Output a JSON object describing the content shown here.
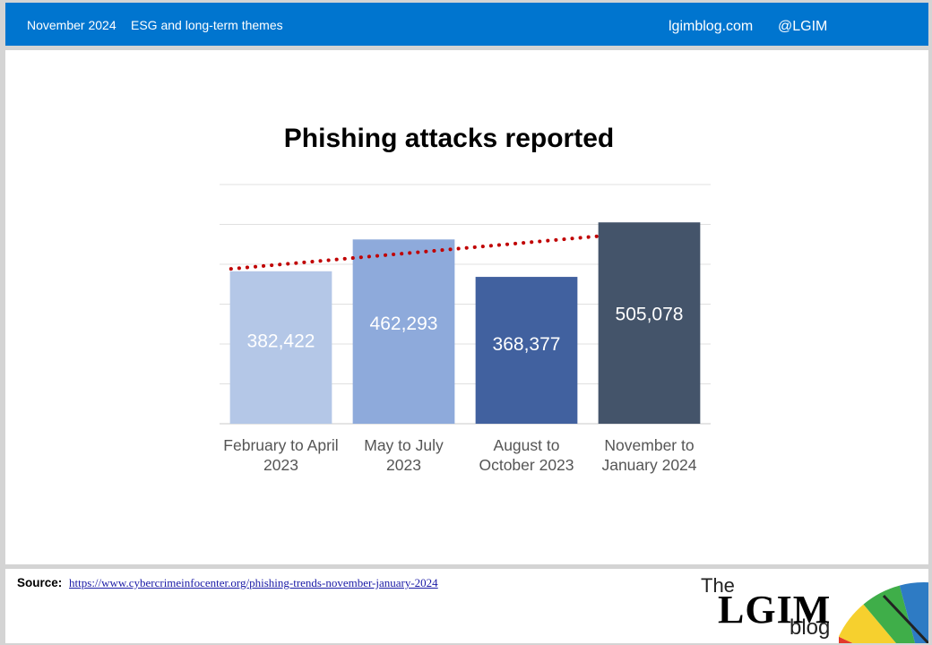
{
  "header": {
    "date": "November 2024",
    "topic": "ESG and long-term themes",
    "site": "lgimblog.com",
    "handle": "@LGIM"
  },
  "chart_data": {
    "type": "bar",
    "title": "Phishing attacks reported",
    "categories": [
      [
        "February to April",
        "2023"
      ],
      [
        "May to July",
        "2023"
      ],
      [
        "August to",
        "October 2023"
      ],
      [
        "November to",
        "January 2024"
      ]
    ],
    "values": [
      382422,
      462293,
      368377,
      505078
    ],
    "data_labels": [
      "382,422",
      "462,293",
      "368,377",
      "505,078"
    ],
    "colors": [
      "#b4c7e7",
      "#8eaadb",
      "#41619f",
      "#44546a"
    ],
    "ylim": [
      0,
      600000
    ],
    "grid": true,
    "trendline": {
      "style": "dotted",
      "color": "#c00000"
    }
  },
  "footer": {
    "source_label": "Source:",
    "source_url": "https://www.cybercrimeinfocenter.org/phishing-trends-november-january-2024",
    "logo_the": "The",
    "logo_main": "LGIM",
    "logo_blog": "blog",
    "umbrella_colors": [
      "#e23a2c",
      "#f6d02e",
      "#3fae49",
      "#2e7bc4"
    ]
  }
}
